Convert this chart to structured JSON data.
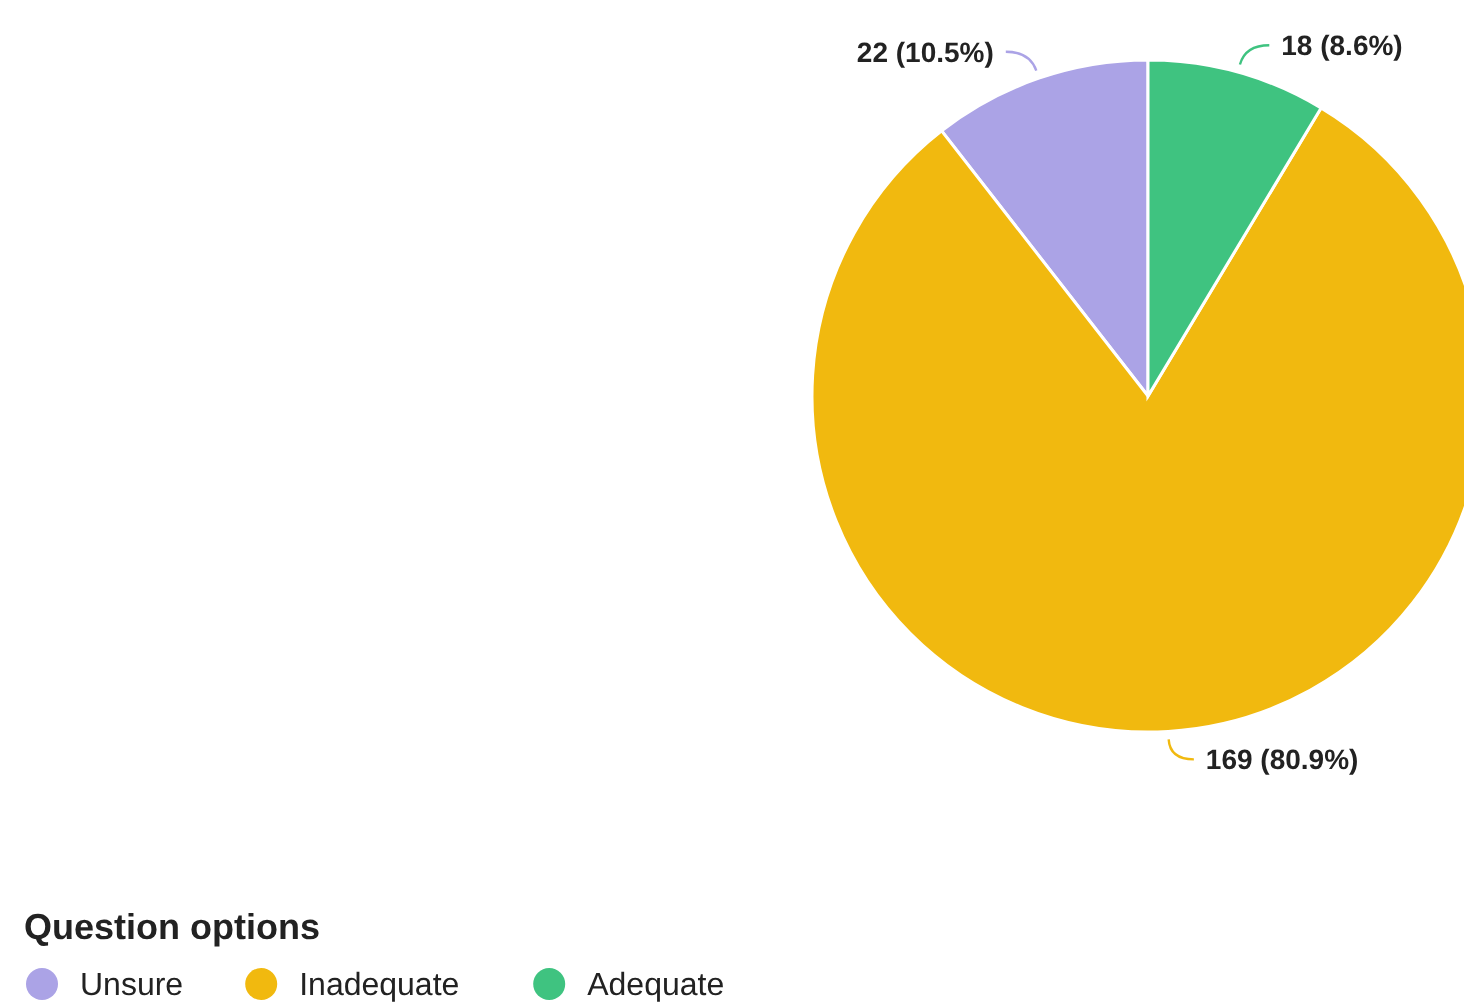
{
  "chart_data": {
    "type": "pie",
    "legend_title": "Question options",
    "legend": "bottom left",
    "categories": [
      "Unsure",
      "Inadequate",
      "Adequate"
    ],
    "values": [
      22,
      169,
      18
    ],
    "value_labels": [
      "22 (10.5%)",
      "169 (80.9%)",
      "18 (8.6%)"
    ],
    "colors": [
      "#aba3e6",
      "#f1b90f",
      "#3fc380"
    ]
  }
}
